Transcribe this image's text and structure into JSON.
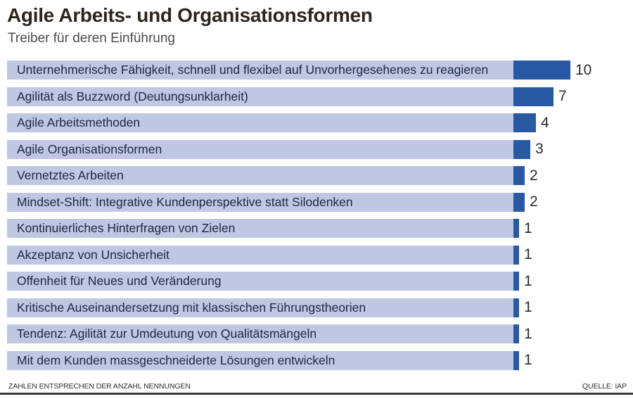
{
  "header": {
    "title": "Agile Arbeits- und Organisationsformen",
    "subtitle": "Treiber für deren Einführung"
  },
  "footer": {
    "note": "ZAHLEN ENTSPRECHEN DER ANZAHL NENNUNGEN",
    "source": "QUELLE: IAP"
  },
  "colors": {
    "bar": "#2a59a4",
    "band": "#bfc7e2",
    "title_text": "#2d251b",
    "label_text": "#202849",
    "bottom_rule": "#3c3c3c"
  },
  "chart_data": {
    "type": "bar",
    "orientation": "horizontal",
    "title": "Agile Arbeits- und Organisationsformen",
    "subtitle": "Treiber für deren Einführung",
    "categories": [
      "Unternehmerische Fähigkeit, schnell und flexibel auf Unvorhergesehenes zu reagieren",
      "Agilität als Buzzword (Deutungsunklarheit)",
      "Agile Arbeitsmethoden",
      "Agile Organisationsformen",
      "Vernetztes Arbeiten",
      "Mindset-Shift: Integrative Kundenperspektive statt Silodenken",
      "Kontinuierliches Hinterfragen von Zielen",
      "Akzeptanz von Unsicherheit",
      "Offenheit für Neues und Veränderung",
      "Kritische Auseinandersetzung mit klassischen Führungstheorien",
      "Tendenz: Agilität zur Umdeutung von Qualitätsmängeln",
      "Mit dem Kunden massgeschneiderte Lösungen entwickeln"
    ],
    "values": [
      10,
      7,
      4,
      3,
      2,
      2,
      1,
      1,
      1,
      1,
      1,
      1
    ],
    "xlim": [
      0,
      10
    ],
    "value_labels_shown": true,
    "legend": "none",
    "grid": "off",
    "note": "Zahlen entsprechen der Anzahl Nennungen",
    "source": "Quelle: IAP"
  }
}
